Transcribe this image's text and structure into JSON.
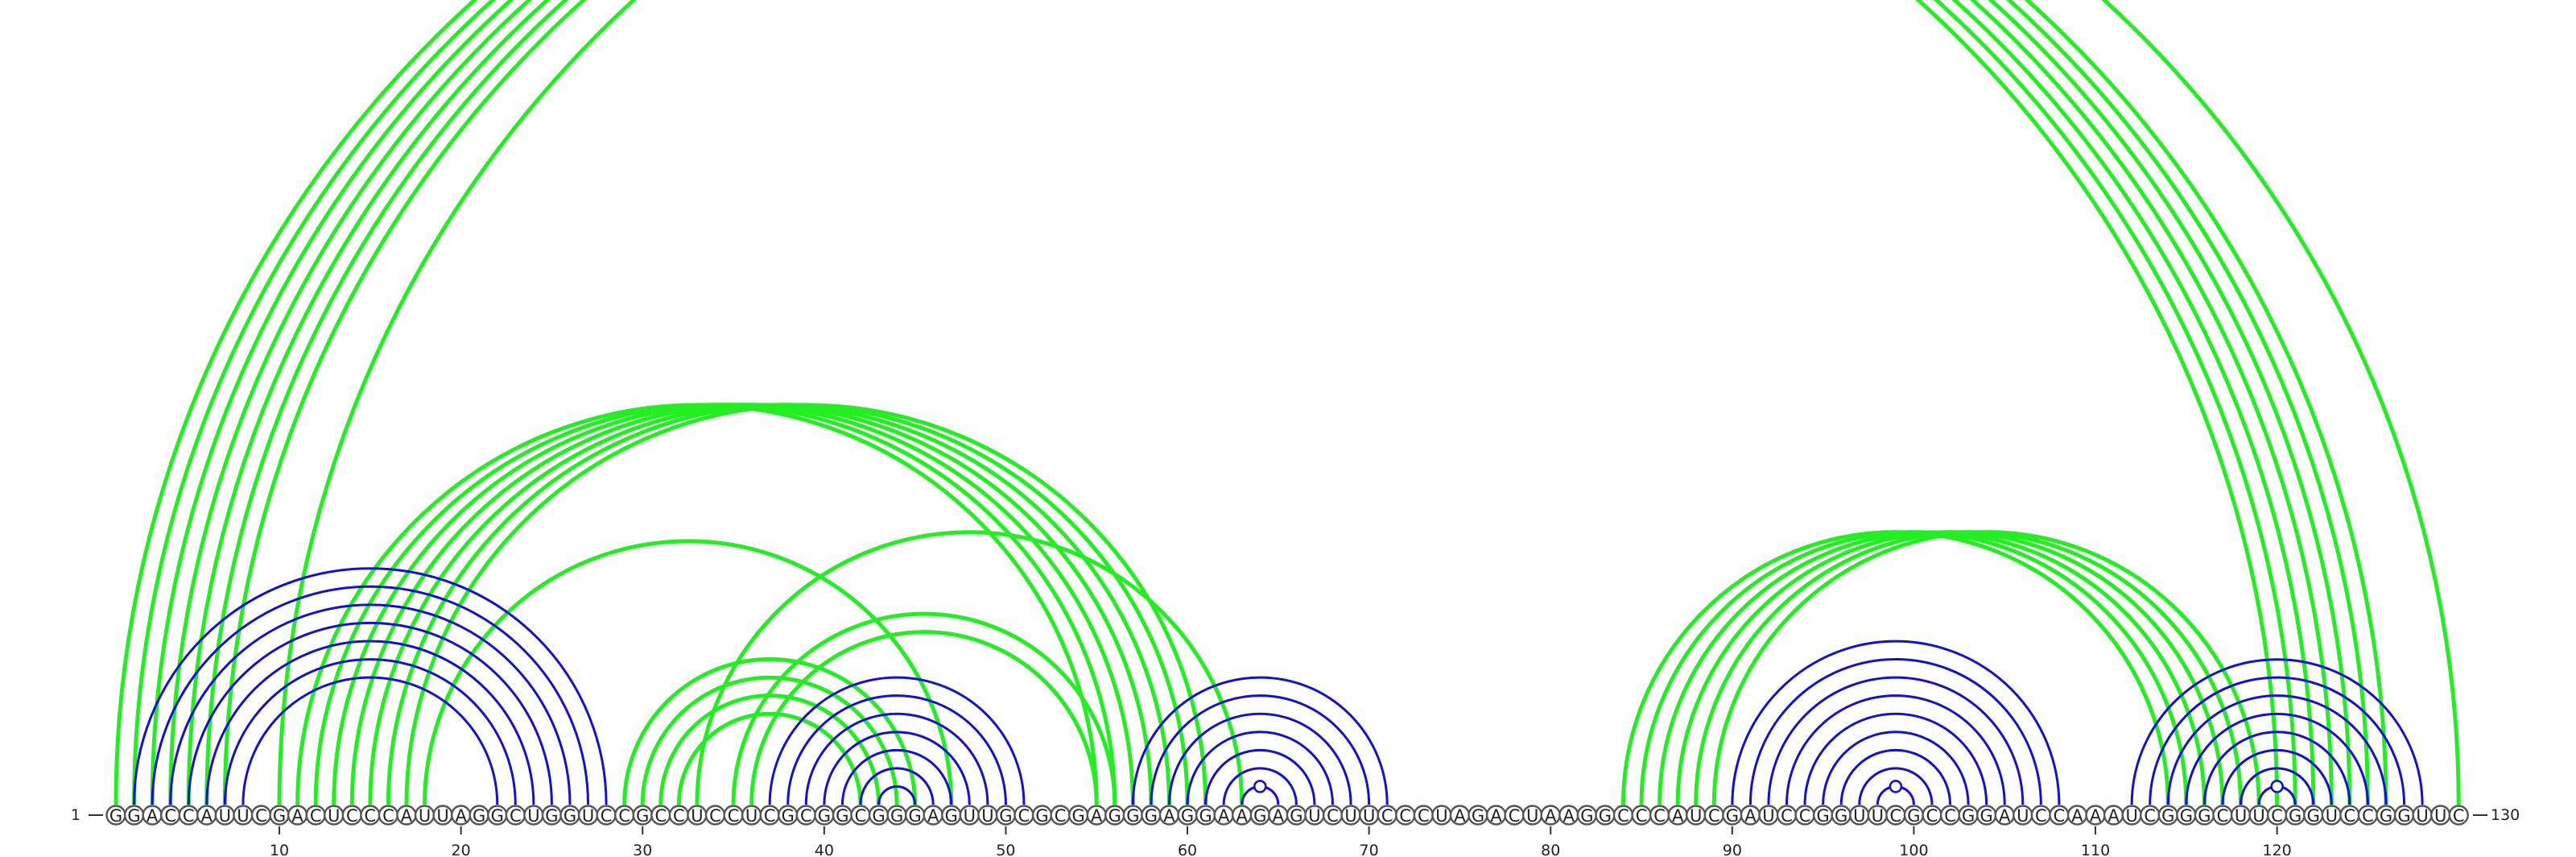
{
  "sequence": "GGACCAUUCGACUCCCAUUAGGCUGGUCCGCCUCCUCGCGGCGGGAGUUGCGCGAGGGAGGAAGAGUCUUCCCUAGACUAAGGCCCAUCGAUCCGGUUCGCCGGAUCCAAAUCGGGCUUCGGUCCGGUUC",
  "labels": {
    "start": "1",
    "end": "130",
    "ticks": [
      "10",
      "20",
      "30",
      "40",
      "50",
      "60",
      "70",
      "80",
      "90",
      "100",
      "110",
      "120"
    ]
  },
  "colors": {
    "nested_pair": "#1010d8",
    "crossing_pair": "#22ee22",
    "circle_stroke": "#555555"
  },
  "pairs": {
    "nested": [
      [
        2,
        28
      ],
      [
        3,
        27
      ],
      [
        4,
        26
      ],
      [
        5,
        25
      ],
      [
        6,
        24
      ],
      [
        7,
        23
      ],
      [
        8,
        22
      ],
      [
        37,
        51
      ],
      [
        38,
        50
      ],
      [
        39,
        49
      ],
      [
        40,
        48
      ],
      [
        41,
        47
      ],
      [
        42,
        46
      ],
      [
        43,
        45
      ],
      [
        57,
        71
      ],
      [
        58,
        70
      ],
      [
        59,
        69
      ],
      [
        60,
        68
      ],
      [
        61,
        67
      ],
      [
        62,
        66
      ],
      [
        63,
        65
      ],
      [
        90,
        108
      ],
      [
        91,
        107
      ],
      [
        92,
        106
      ],
      [
        93,
        105
      ],
      [
        94,
        104
      ],
      [
        95,
        103
      ],
      [
        96,
        102
      ],
      [
        97,
        101
      ],
      [
        98,
        100
      ],
      [
        112,
        128
      ],
      [
        113,
        127
      ],
      [
        114,
        126
      ],
      [
        115,
        125
      ],
      [
        116,
        124
      ],
      [
        117,
        123
      ],
      [
        118,
        122
      ],
      [
        119,
        121
      ]
    ],
    "crossing": [
      [
        1,
        120
      ],
      [
        2,
        121
      ],
      [
        3,
        122
      ],
      [
        4,
        123
      ],
      [
        5,
        124
      ],
      [
        6,
        125
      ],
      [
        7,
        126
      ],
      [
        11,
        55
      ],
      [
        12,
        56
      ],
      [
        13,
        57
      ],
      [
        14,
        58
      ],
      [
        15,
        59
      ],
      [
        16,
        60
      ],
      [
        17,
        61
      ],
      [
        29,
        45
      ],
      [
        30,
        44
      ],
      [
        31,
        43
      ],
      [
        32,
        42
      ],
      [
        33,
        63
      ],
      [
        35,
        56
      ],
      [
        36,
        55
      ],
      [
        84,
        114
      ],
      [
        85,
        115
      ],
      [
        86,
        116
      ],
      [
        87,
        117
      ],
      [
        88,
        118
      ],
      [
        89,
        119
      ],
      [
        130,
        10
      ],
      [
        18,
        47
      ]
    ]
  },
  "markers": [
    64,
    99,
    120
  ]
}
